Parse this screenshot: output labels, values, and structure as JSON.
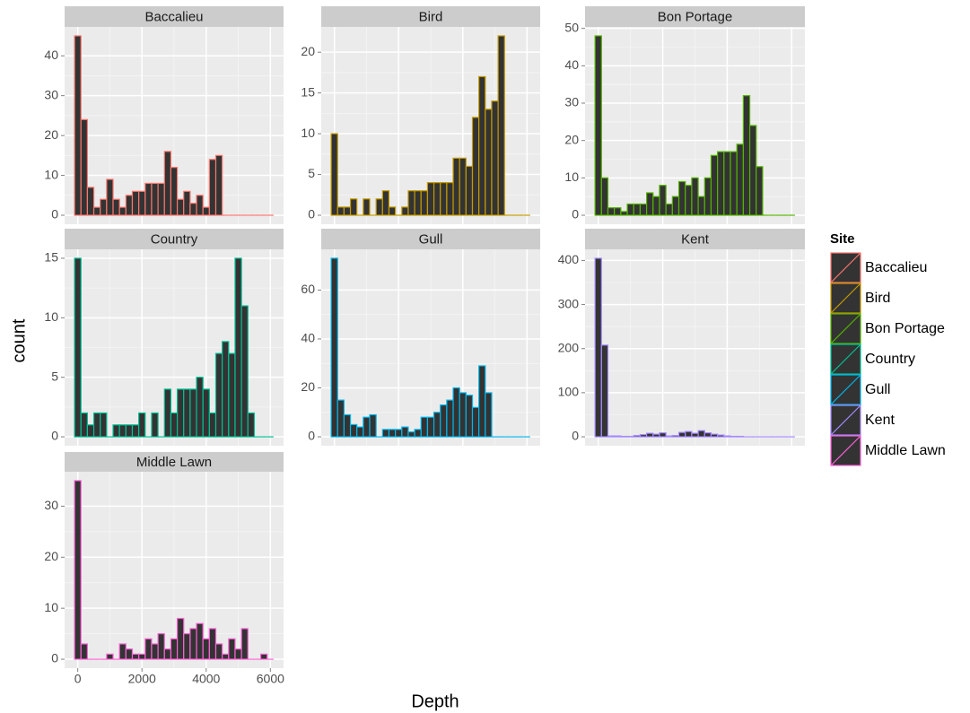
{
  "axes": {
    "x_label": "Depth",
    "y_label": "count"
  },
  "legend": {
    "title": "Site"
  },
  "chart_data": [
    {
      "type": "histogram",
      "title": "Baccalieu",
      "color": "#F8766D",
      "grid": true,
      "bins": [
        -100,
        100,
        300,
        500,
        700,
        900,
        1100,
        1300,
        1500,
        1700,
        1900,
        2100,
        2300,
        2500,
        2700,
        2900,
        3100,
        3300,
        3500,
        3700,
        3900,
        4100,
        4300,
        4500,
        4700,
        4900,
        5100,
        5300,
        5500,
        5700,
        5900,
        6100
      ],
      "counts": [
        45,
        24,
        7,
        2,
        4,
        9,
        4,
        2,
        5,
        6,
        6,
        8,
        8,
        8,
        16,
        12,
        4,
        6,
        3,
        5,
        2,
        14,
        15,
        0,
        0,
        0,
        0,
        0,
        0,
        0,
        0
      ],
      "xlim": [
        -410,
        6410
      ],
      "xticks": [
        0,
        2000,
        4000,
        6000
      ],
      "ylim": [
        -2.25,
        47.25
      ],
      "yticks": [
        0,
        10,
        20,
        30,
        40
      ]
    },
    {
      "type": "histogram",
      "title": "Bird",
      "color": "#C49A00",
      "grid": true,
      "bins": [
        -100,
        100,
        300,
        500,
        700,
        900,
        1100,
        1300,
        1500,
        1700,
        1900,
        2100,
        2300,
        2500,
        2700,
        2900,
        3100,
        3300,
        3500,
        3700,
        3900,
        4100,
        4300,
        4500,
        4700,
        4900,
        5100,
        5300,
        5500,
        5700,
        5900,
        6100
      ],
      "counts": [
        10,
        1,
        1,
        2,
        0,
        2,
        0,
        2,
        3,
        1,
        0,
        1,
        3,
        3,
        3,
        4,
        4,
        4,
        4,
        7,
        7,
        6,
        12,
        17,
        13,
        14,
        22,
        0,
        0,
        0,
        0
      ],
      "xlim": [
        -410,
        6410
      ],
      "xticks": [
        0,
        2000,
        4000,
        6000
      ],
      "ylim": [
        -1.1,
        23.1
      ],
      "yticks": [
        0,
        5,
        10,
        15,
        20
      ]
    },
    {
      "type": "histogram",
      "title": "Bon Portage",
      "color": "#53B400",
      "grid": true,
      "bins": [
        -100,
        100,
        300,
        500,
        700,
        900,
        1100,
        1300,
        1500,
        1700,
        1900,
        2100,
        2300,
        2500,
        2700,
        2900,
        3100,
        3300,
        3500,
        3700,
        3900,
        4100,
        4300,
        4500,
        4700,
        4900,
        5100,
        5300,
        5500,
        5700,
        5900,
        6100
      ],
      "counts": [
        48,
        10,
        2,
        2,
        1,
        3,
        3,
        3,
        6,
        5,
        8,
        3,
        5,
        9,
        8,
        10,
        5,
        10,
        16,
        17,
        17,
        17,
        19,
        32,
        24,
        13,
        0,
        0,
        0,
        0,
        0
      ],
      "xlim": [
        -410,
        6410
      ],
      "xticks": [
        0,
        2000,
        4000,
        6000
      ],
      "ylim": [
        -2.4,
        50.4
      ],
      "yticks": [
        0,
        10,
        20,
        30,
        40,
        50
      ]
    },
    {
      "type": "histogram",
      "title": "Country",
      "color": "#00C094",
      "grid": true,
      "bins": [
        -100,
        100,
        300,
        500,
        700,
        900,
        1100,
        1300,
        1500,
        1700,
        1900,
        2100,
        2300,
        2500,
        2700,
        2900,
        3100,
        3300,
        3500,
        3700,
        3900,
        4100,
        4300,
        4500,
        4700,
        4900,
        5100,
        5300,
        5500,
        5700,
        5900,
        6100
      ],
      "counts": [
        15,
        2,
        1,
        2,
        2,
        0,
        1,
        1,
        1,
        1,
        2,
        0,
        2,
        0,
        4,
        2,
        4,
        4,
        4,
        5,
        4,
        2,
        7,
        8,
        7,
        15,
        11,
        2,
        0,
        0,
        0
      ],
      "xlim": [
        -410,
        6410
      ],
      "xticks": [
        0,
        2000,
        4000,
        6000
      ],
      "ylim": [
        -0.75,
        15.75
      ],
      "yticks": [
        0,
        5,
        10,
        15
      ]
    },
    {
      "type": "histogram",
      "title": "Gull",
      "color": "#00B6EB",
      "grid": true,
      "bins": [
        -100,
        100,
        300,
        500,
        700,
        900,
        1100,
        1300,
        1500,
        1700,
        1900,
        2100,
        2300,
        2500,
        2700,
        2900,
        3100,
        3300,
        3500,
        3700,
        3900,
        4100,
        4300,
        4500,
        4700,
        4900,
        5100,
        5300,
        5500,
        5700,
        5900,
        6100
      ],
      "counts": [
        73,
        15,
        9,
        5,
        4,
        8,
        9,
        0,
        3,
        3,
        3,
        4,
        2,
        3,
        8,
        8,
        10,
        13,
        15,
        20,
        18,
        17,
        12,
        29,
        18,
        0,
        0,
        0,
        0,
        0,
        0
      ],
      "xlim": [
        -410,
        6410
      ],
      "xticks": [
        0,
        2000,
        4000,
        6000
      ],
      "ylim": [
        -3.65,
        76.65
      ],
      "yticks": [
        0,
        20,
        40,
        60
      ]
    },
    {
      "type": "histogram",
      "title": "Kent",
      "color": "#A58AFF",
      "grid": true,
      "bins": [
        -100,
        100,
        300,
        500,
        700,
        900,
        1100,
        1300,
        1500,
        1700,
        1900,
        2100,
        2300,
        2500,
        2700,
        2900,
        3100,
        3300,
        3500,
        3700,
        3900,
        4100,
        4300,
        4500,
        4700,
        4900,
        5100,
        5300,
        5500,
        5700,
        5900,
        6100
      ],
      "counts": [
        405,
        208,
        2,
        2,
        1,
        1,
        3,
        5,
        8,
        6,
        9,
        2,
        3,
        10,
        12,
        8,
        14,
        9,
        6,
        4,
        2,
        1,
        1,
        0,
        0,
        0,
        0,
        0,
        0,
        0,
        0
      ],
      "xlim": [
        -410,
        6410
      ],
      "xticks": [
        0,
        2000,
        4000,
        6000
      ],
      "ylim": [
        -20.25,
        425.25
      ],
      "yticks": [
        0,
        100,
        200,
        300,
        400
      ]
    },
    {
      "type": "histogram",
      "title": "Middle Lawn",
      "color": "#FB61D7",
      "grid": true,
      "bins": [
        -100,
        100,
        300,
        500,
        700,
        900,
        1100,
        1300,
        1500,
        1700,
        1900,
        2100,
        2300,
        2500,
        2700,
        2900,
        3100,
        3300,
        3500,
        3700,
        3900,
        4100,
        4300,
        4500,
        4700,
        4900,
        5100,
        5300,
        5500,
        5700,
        5900,
        6100
      ],
      "counts": [
        35,
        3,
        0,
        0,
        0,
        1,
        0,
        3,
        2,
        1,
        1,
        4,
        3,
        5,
        2,
        4,
        8,
        5,
        6,
        7,
        4,
        6,
        3,
        1,
        4,
        2,
        6,
        0,
        0,
        1,
        0
      ],
      "xlim": [
        -410,
        6410
      ],
      "xticks": [
        0,
        2000,
        4000,
        6000
      ],
      "ylim": [
        -1.75,
        36.75
      ],
      "yticks": [
        0,
        10,
        20,
        30
      ]
    }
  ]
}
